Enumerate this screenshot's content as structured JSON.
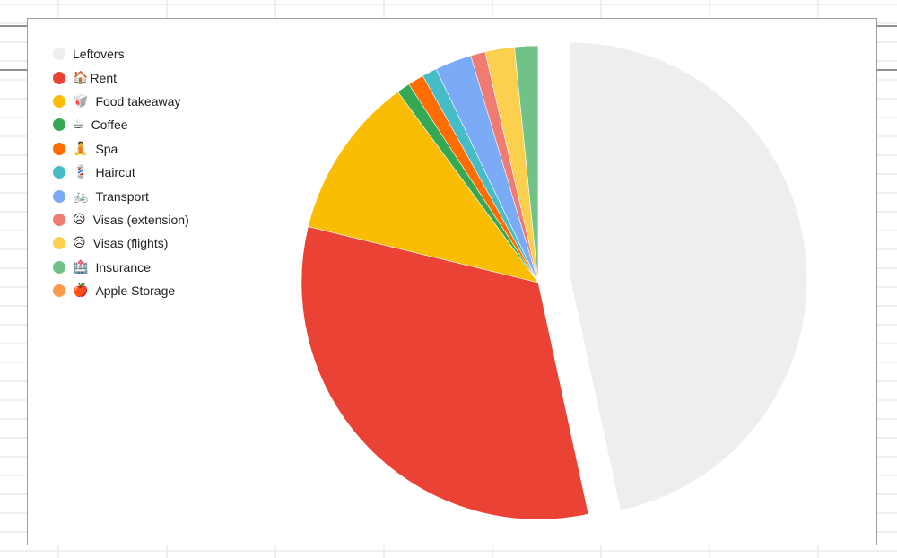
{
  "chart_data": {
    "type": "pie",
    "title": "",
    "legend_position": "top-left",
    "start_angle": "12 o'clock",
    "direction": "clockwise",
    "exploded_slice": "Leftovers",
    "slices": [
      {
        "label": "Leftovers",
        "icon": "",
        "icon_name": "",
        "value": 46.6,
        "color": "#eeeeee"
      },
      {
        "label": "Rent",
        "icon": "🏠",
        "icon_name": "house-icon",
        "value": 32.2,
        "color": "#ea4335"
      },
      {
        "label": "Food takeaway",
        "icon": "🥡",
        "icon_name": "takeout-box-icon",
        "value": 11.1,
        "color": "#fbbc04"
      },
      {
        "label": "Coffee",
        "icon": "☕",
        "icon_name": "coffee-cup-icon",
        "value": 0.9,
        "color": "#34a853"
      },
      {
        "label": "Spa",
        "icon": "🧘",
        "icon_name": "meditation-person-icon",
        "value": 1.1,
        "color": "#ff6d01"
      },
      {
        "label": "Haircut",
        "icon": "💈",
        "icon_name": "barber-pole-icon",
        "value": 1.0,
        "color": "#46bdc6"
      },
      {
        "label": "Transport",
        "icon": "🚲",
        "icon_name": "bicycle-icon",
        "value": 2.5,
        "color": "#7baaf7"
      },
      {
        "label": "Visas (extension)",
        "icon": "😥",
        "icon_name": "sad-face-icon",
        "value": 1.0,
        "color": "#f07b72"
      },
      {
        "label": "Visas (flights)",
        "icon": "😥",
        "icon_name": "sad-face-icon",
        "value": 2.0,
        "color": "#fcd04f"
      },
      {
        "label": "Insurance",
        "icon": "🏥",
        "icon_name": "hospital-icon",
        "value": 1.6,
        "color": "#71c287"
      },
      {
        "label": "Apple Storage",
        "icon": "🍎",
        "icon_name": "apple-icon",
        "value": 0.0,
        "color": "#ff994d"
      }
    ]
  }
}
